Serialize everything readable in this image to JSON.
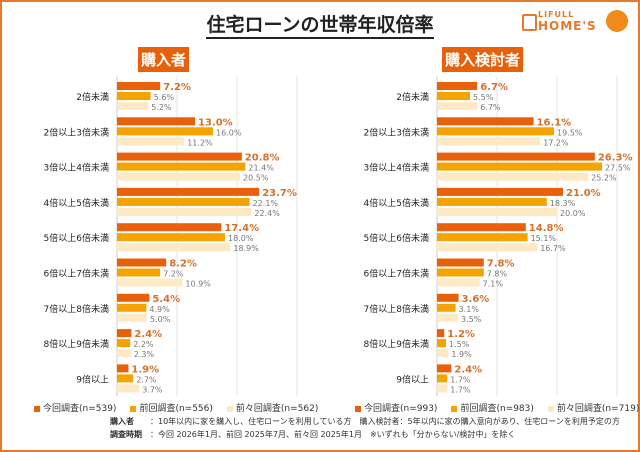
{
  "title": "住宅ローンの世帯年収倍率",
  "logo": {
    "line1": "LIFULL",
    "line2": "HOME'S"
  },
  "colors": {
    "current": "#e8600a",
    "previous": "#f5a300",
    "before_previous": "#fde9c4",
    "current_label": "#d9702a",
    "other_label": "#777777",
    "grid": "#e6e6e6"
  },
  "chart_data": [
    {
      "type": "bar",
      "orientation": "horizontal",
      "title": "購入者",
      "categories": [
        "2倍未満",
        "2倍以上3倍未満",
        "3倍以上4倍未満",
        "4倍以上5倍未満",
        "5倍以上6倍未満",
        "6倍以上7倍未満",
        "7倍以上8倍未満",
        "8倍以上9倍未満",
        "9倍以上"
      ],
      "series": [
        {
          "name": "今回調査(n=539)",
          "values": [
            7.2,
            13.0,
            20.8,
            23.7,
            17.4,
            8.2,
            5.4,
            2.4,
            1.9
          ]
        },
        {
          "name": "前回調査(n=556)",
          "values": [
            5.6,
            16.0,
            21.4,
            22.1,
            18.0,
            7.2,
            4.9,
            2.2,
            2.7
          ]
        },
        {
          "name": "前々回調査(n=562)",
          "values": [
            5.2,
            11.2,
            20.5,
            22.4,
            18.9,
            10.9,
            5.0,
            2.3,
            3.7
          ]
        }
      ],
      "xlim": [
        0,
        30
      ],
      "unit": "%",
      "grid": true,
      "legend": "bottom"
    },
    {
      "type": "bar",
      "orientation": "horizontal",
      "title": "購入検討者",
      "categories": [
        "2倍未満",
        "2倍以上3倍未満",
        "3倍以上4倍未満",
        "4倍以上5倍未満",
        "5倍以上6倍未満",
        "6倍以上7倍未満",
        "7倍以上8倍未満",
        "8倍以上9倍未満",
        "9倍以上"
      ],
      "series": [
        {
          "name": "今回調査(n=993)",
          "values": [
            6.7,
            16.1,
            26.3,
            21.0,
            14.8,
            7.8,
            3.6,
            1.2,
            2.4
          ]
        },
        {
          "name": "前回調査(n=983)",
          "values": [
            5.5,
            19.5,
            27.5,
            18.3,
            15.1,
            7.8,
            3.1,
            1.5,
            1.7
          ]
        },
        {
          "name": "前々回調査(n=719)",
          "values": [
            6.7,
            17.2,
            25.2,
            20.0,
            16.7,
            7.1,
            3.5,
            1.9,
            1.7
          ]
        }
      ],
      "xlim": [
        0,
        30
      ],
      "unit": "%",
      "grid": true,
      "legend": "bottom"
    }
  ],
  "notes": [
    {
      "label": "購入者",
      "text": "：10年以内に家を購入し、住宅ローンを利用している方　購入検討者：5年以内に家の購入意向があり、住宅ローンを利用予定の方"
    },
    {
      "label": "調査時期",
      "text": "：今回 2026年1月、前回 2025年7月、前々回 2025年1月　※いずれも「分からない/検討中」を除く"
    }
  ]
}
